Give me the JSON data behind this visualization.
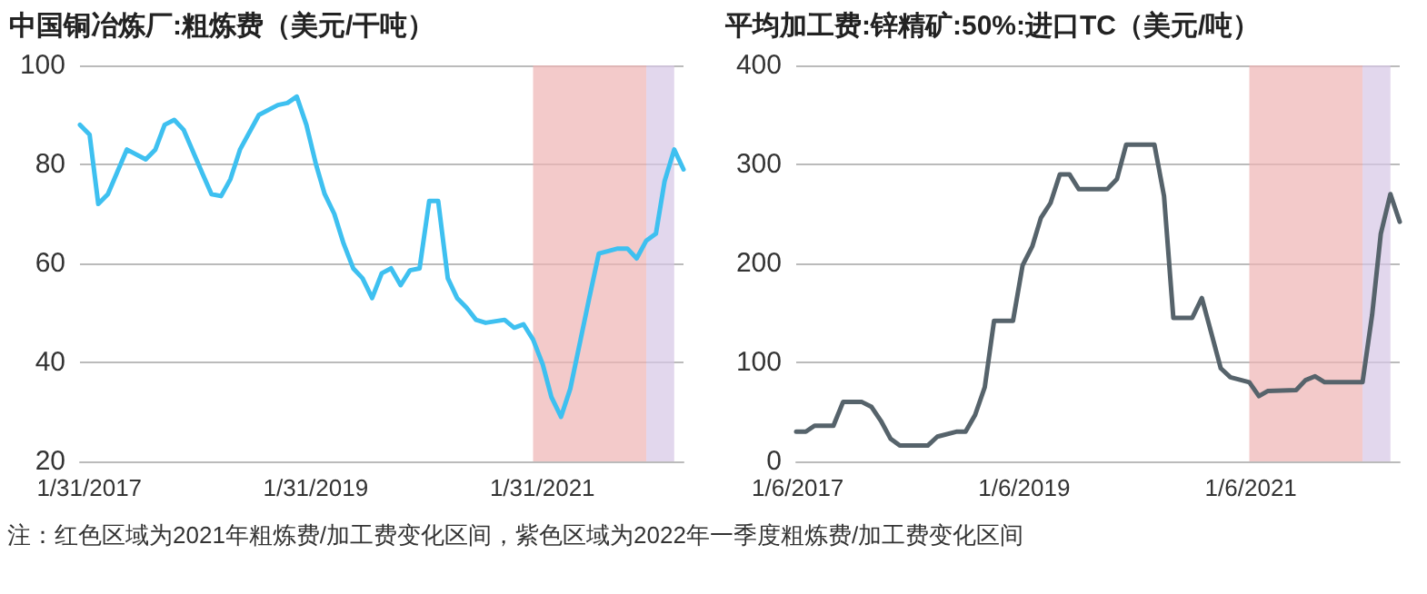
{
  "chart_data": [
    {
      "type": "line",
      "title": "中国铜冶炼厂:粗炼费（美元/干吨）",
      "x": [
        "2017-01",
        "2017-02",
        "2017-03",
        "2017-04",
        "2017-06",
        "2017-08",
        "2017-09",
        "2017-10",
        "2017-11",
        "2017-12",
        "2018-02",
        "2018-03",
        "2018-04",
        "2018-05",
        "2018-06",
        "2018-08",
        "2018-10",
        "2018-11",
        "2018-12",
        "2019-01",
        "2019-02",
        "2019-03",
        "2019-04",
        "2019-05",
        "2019-06",
        "2019-07",
        "2019-08",
        "2019-09",
        "2019-10",
        "2019-11",
        "2019-12",
        "2020-01",
        "2020-02",
        "2020-03",
        "2020-04",
        "2020-05",
        "2020-06",
        "2020-07",
        "2020-08",
        "2020-10",
        "2020-11",
        "2020-12",
        "2021-01",
        "2021-02",
        "2021-03",
        "2021-04",
        "2021-05",
        "2021-06",
        "2021-07",
        "2021-08",
        "2021-09",
        "2021-10",
        "2021-11",
        "2021-12",
        "2022-01",
        "2022-02",
        "2022-03",
        "2022-04",
        "2022-05"
      ],
      "series": [
        {
          "color": "#3ec0f0",
          "values": [
            88,
            86,
            72,
            74,
            83,
            81,
            83,
            88,
            89,
            87,
            78,
            74,
            73.6,
            77,
            83,
            90,
            92,
            92.4,
            93.7,
            88,
            80,
            74,
            70,
            64,
            59,
            57,
            53,
            58,
            59,
            55.6,
            58.6,
            59,
            72.6,
            72.6,
            57,
            53,
            51,
            48.6,
            48,
            48.6,
            47,
            47.7,
            44.6,
            39.6,
            33,
            29,
            34.7,
            44,
            53,
            62,
            62.5,
            63,
            63,
            61,
            64.6,
            66,
            76.6,
            83,
            79
          ]
        }
      ],
      "xlim": [
        "2017-01",
        "2022-05"
      ],
      "xticks": [
        {
          "value": "2017-01-31",
          "label": "1/31/2017"
        },
        {
          "value": "2019-01-31",
          "label": "1/31/2019"
        },
        {
          "value": "2021-01-31",
          "label": "1/31/2021"
        }
      ],
      "ylim": [
        20,
        100
      ],
      "yticks": [
        20,
        40,
        60,
        80,
        100
      ],
      "grid": "y",
      "marker": "none",
      "line_style": "solid",
      "bands": [
        {
          "axis": "x",
          "from": "2021-01",
          "to": "2022-01",
          "color": "#eeb4b4"
        },
        {
          "axis": "x",
          "from": "2022-01",
          "to": "2022-04",
          "color": "#d6c6e6"
        }
      ],
      "annotations": [
        "注：红色区域为2021年粗炼费/加工费变化区间，紫色区域为2022年一季度粗炼费/加工费变化区间"
      ]
    },
    {
      "type": "line",
      "title": "平均加工费:锌精矿:50%:进口TC（美元/吨）",
      "x": [
        "2017-01",
        "2017-02",
        "2017-03",
        "2017-05",
        "2017-06",
        "2017-08",
        "2017-09",
        "2017-10",
        "2017-11",
        "2017-12",
        "2018-03",
        "2018-04",
        "2018-06",
        "2018-07",
        "2018-08",
        "2018-09",
        "2018-10",
        "2018-12",
        "2019-01",
        "2019-02",
        "2019-03",
        "2019-04",
        "2019-05",
        "2019-06",
        "2019-07",
        "2019-10",
        "2019-11",
        "2019-12",
        "2020-03",
        "2020-04",
        "2020-05",
        "2020-07",
        "2020-08",
        "2020-09",
        "2020-10",
        "2020-11",
        "2021-01",
        "2021-02",
        "2021-03",
        "2021-06",
        "2021-07",
        "2021-08",
        "2021-09",
        "2021-10",
        "2022-01",
        "2022-02",
        "2022-03",
        "2022-04",
        "2022-05"
      ],
      "series": [
        {
          "color": "#56636b",
          "values": [
            30,
            30,
            36,
            36,
            60,
            60,
            55,
            41,
            23,
            16,
            16,
            25,
            30,
            30,
            47,
            75,
            142,
            142,
            198,
            217,
            246,
            261,
            290,
            290,
            275,
            275,
            285,
            320,
            320,
            268,
            145,
            145,
            165,
            129,
            94,
            85,
            80,
            66,
            71,
            72,
            82,
            86,
            80,
            80,
            80,
            148,
            230,
            270,
            242
          ]
        }
      ],
      "xlim": [
        "2017-01",
        "2022-05"
      ],
      "xticks": [
        {
          "value": "2017-01-06",
          "label": "1/6/2017"
        },
        {
          "value": "2019-01-06",
          "label": "1/6/2019"
        },
        {
          "value": "2021-01-06",
          "label": "1/6/2021"
        }
      ],
      "ylim": [
        0,
        400
      ],
      "yticks": [
        0,
        100,
        200,
        300,
        400
      ],
      "grid": "y",
      "marker": "none",
      "line_style": "solid",
      "bands": [
        {
          "axis": "x",
          "from": "2021-01",
          "to": "2022-01",
          "color": "#eeb4b4"
        },
        {
          "axis": "x",
          "from": "2022-01",
          "to": "2022-04",
          "color": "#d6c6e6"
        }
      ]
    }
  ]
}
